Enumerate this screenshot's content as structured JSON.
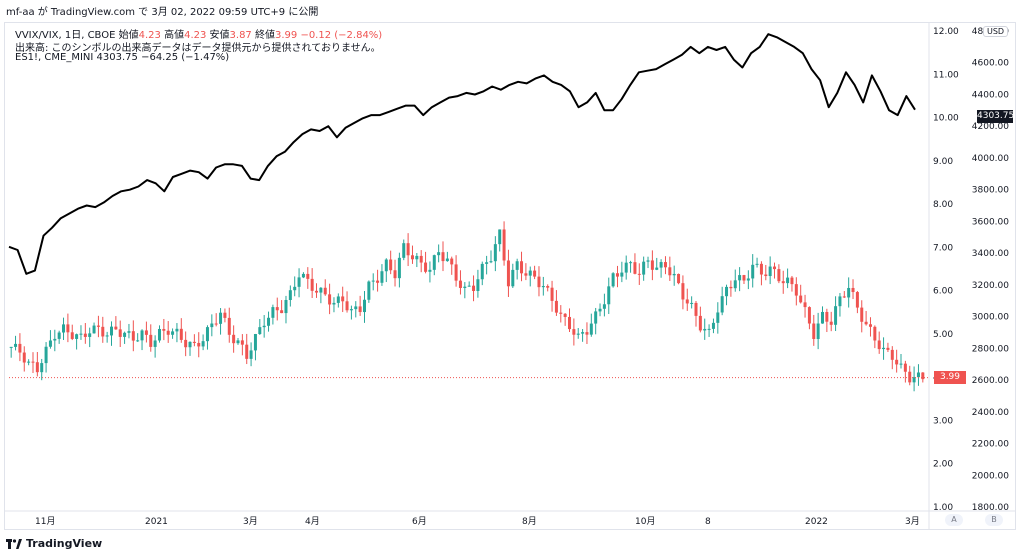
{
  "header": {
    "text": "mf-aa が TradingView.com で 3月 02, 2022 09:59 UTC+9 に公開"
  },
  "legend": {
    "line1": {
      "symbol": "VVIX/VIX, 1日, CBOE",
      "open_label": "始値",
      "open": "4.23",
      "high_label": "高値",
      "high": "4.23",
      "low_label": "安値",
      "low": "3.87",
      "close_label": "終値",
      "close": "3.99",
      "change": "−0.12 (−2.84%)"
    },
    "line2": "出来高: このシンボルの出来高データはデータ提供元から提供されておりません。",
    "line3": {
      "symbol": "ES1!, CME_MINI",
      "value": "4303.75",
      "change": "−64.25 (−1.47%)"
    }
  },
  "left_axis": {
    "ticks": [
      "12.00",
      "11.00",
      "10.00",
      "9.00",
      "8.00",
      "7.00",
      "6.00",
      "5.00",
      "4.00",
      "3.00",
      "2.00",
      "1.00"
    ]
  },
  "right_axis": {
    "unit": "USD",
    "ticks": [
      "4800.00",
      "4600.00",
      "4400.00",
      "4200.00",
      "4000.00",
      "3800.00",
      "3600.00",
      "3400.00",
      "3200.00",
      "3000.00",
      "2800.00",
      "2600.00",
      "2400.00",
      "2200.00",
      "2000.00",
      "1800.00"
    ]
  },
  "time_axis": {
    "labels": [
      "11月",
      "2021",
      "3月",
      "4月",
      "6月",
      "8月",
      "10月",
      "8",
      "2022",
      "3月"
    ]
  },
  "price_tags": {
    "es": "4303.75",
    "vvix": "3.99"
  },
  "scale_buttons": [
    "A",
    "B"
  ],
  "footer": {
    "brand": "TradingView"
  },
  "colors": {
    "up": "#26a69a",
    "down": "#ef5350",
    "line": "#000000",
    "grid": "#e0e3eb"
  },
  "chart_data": {
    "type": "line",
    "series": [
      {
        "name": "ES1!, CME_MINI",
        "scale": "right",
        "values": [
          3440,
          3420,
          3270,
          3290,
          3510,
          3560,
          3620,
          3650,
          3680,
          3700,
          3690,
          3720,
          3760,
          3790,
          3800,
          3820,
          3860,
          3840,
          3790,
          3880,
          3900,
          3920,
          3910,
          3870,
          3940,
          3960,
          3960,
          3950,
          3870,
          3860,
          3950,
          4010,
          4040,
          4100,
          4150,
          4180,
          4170,
          4200,
          4130,
          4190,
          4220,
          4250,
          4270,
          4270,
          4290,
          4310,
          4330,
          4330,
          4270,
          4320,
          4350,
          4380,
          4390,
          4410,
          4400,
          4420,
          4450,
          4430,
          4460,
          4480,
          4470,
          4500,
          4520,
          4480,
          4460,
          4420,
          4320,
          4350,
          4410,
          4300,
          4300,
          4370,
          4460,
          4540,
          4550,
          4560,
          4590,
          4620,
          4650,
          4700,
          4660,
          4700,
          4680,
          4700,
          4620,
          4570,
          4660,
          4700,
          4780,
          4760,
          4730,
          4700,
          4660,
          4560,
          4490,
          4320,
          4410,
          4540,
          4460,
          4350,
          4520,
          4420,
          4300,
          4270,
          4390,
          4303.75
        ]
      },
      {
        "name": "VVIX/VIX, 1日, CBOE",
        "scale": "left",
        "values": [
          4.7,
          4.6,
          4.3,
          4.2,
          4.6,
          5.0,
          5.1,
          5.0,
          4.9,
          5.1,
          5.1,
          5.0,
          5.1,
          5.0,
          4.9,
          5.0,
          4.8,
          5.0,
          5.1,
          5.0,
          4.8,
          4.7,
          4.9,
          5.2,
          5.5,
          5.0,
          4.8,
          4.5,
          4.9,
          5.3,
          5.5,
          5.6,
          5.9,
          6.4,
          6.2,
          6.0,
          5.9,
          5.7,
          5.8,
          5.5,
          5.6,
          6.1,
          6.3,
          6.6,
          6.4,
          7.0,
          6.8,
          6.6,
          6.5,
          6.9,
          6.7,
          6.3,
          6.0,
          6.1,
          6.5,
          6.8,
          7.3,
          6.2,
          6.6,
          6.4,
          6.3,
          6.1,
          5.8,
          5.4,
          5.2,
          4.9,
          5.1,
          5.4,
          5.8,
          6.3,
          6.5,
          6.6,
          6.4,
          6.7,
          6.5,
          6.6,
          6.3,
          5.9,
          5.6,
          5.2,
          5.0,
          5.6,
          6.0,
          6.3,
          6.2,
          6.6,
          6.4,
          6.5,
          6.3,
          6.2,
          6.0,
          5.5,
          5.0,
          5.4,
          5.3,
          5.8,
          6.1,
          5.6,
          5.2,
          4.9,
          4.6,
          4.5,
          4.2,
          4.0,
          3.99
        ]
      }
    ],
    "ylim_left": [
      1.0,
      12.0
    ],
    "ylim_right": [
      1800,
      4800
    ],
    "grid": false
  }
}
